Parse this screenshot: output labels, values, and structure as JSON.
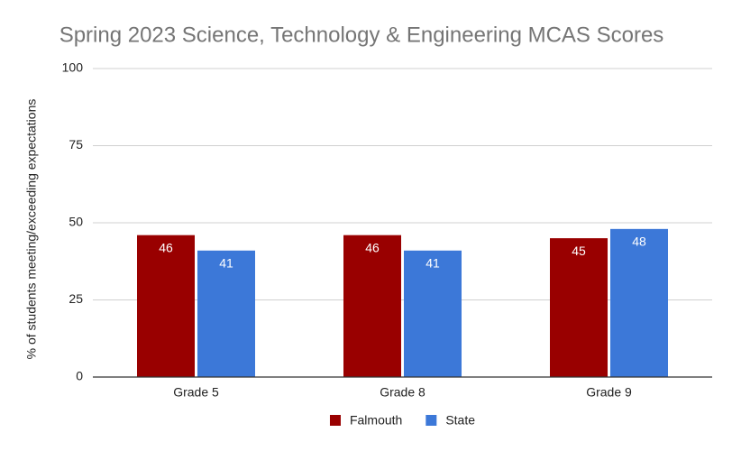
{
  "chart_data": {
    "type": "bar",
    "title": "Spring 2023 Science, Technology & Engineering MCAS Scores",
    "y_label": "% of students meeting/exceeding expectations",
    "categories": [
      "Grade 5",
      "Grade 8",
      "Grade 9"
    ],
    "series": [
      {
        "name": "Falmouth",
        "color": "#990000",
        "values": [
          46,
          46,
          45
        ]
      },
      {
        "name": "State",
        "color": "#3c78d8",
        "values": [
          41,
          41,
          48
        ]
      }
    ],
    "ylim": [
      0,
      100
    ],
    "yticks": [
      0,
      25,
      50,
      75,
      100
    ],
    "grid": true,
    "legend": "bottom"
  }
}
